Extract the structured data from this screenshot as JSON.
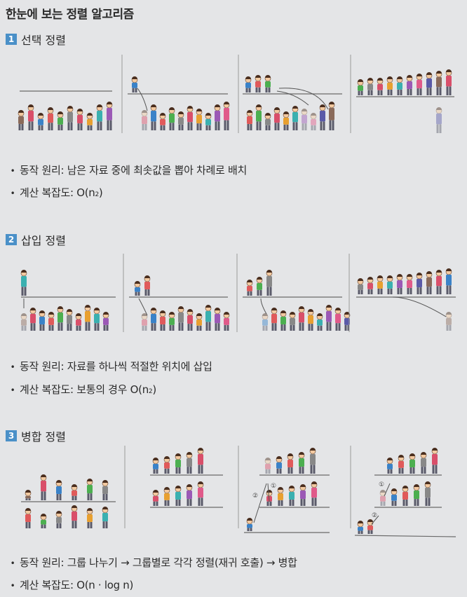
{
  "title": "한눈에 보는 정렬 알고리즘",
  "sections": [
    {
      "number": "1",
      "name": "선택 정렬",
      "principle_label": "동작 원리:",
      "principle": "남은 자료 중에 최솟값을 뽑아 차례로 배치",
      "complexity_label": "계산 복잡도:",
      "complexity_prefix": "O(n",
      "complexity_sup": "2",
      "complexity_suffix": ")"
    },
    {
      "number": "2",
      "name": "삽입 정렬",
      "principle_label": "동작 원리:",
      "principle": "자료를 하나씩 적절한 위치에 삽입",
      "complexity_label": "계산 복잡도:",
      "complexity_prefix": "보통의 경우 O(n",
      "complexity_sup": "2",
      "complexity_suffix": ")"
    },
    {
      "number": "3",
      "name": "병합 정렬",
      "principle_label": "동작 원리:",
      "principle": "그룹 나누기 → 그룹별로 각각 정렬(재귀 호출) → 병합",
      "complexity_label": "계산 복잡도:",
      "complexity_prefix": "O(n · log n)",
      "complexity_sup": "",
      "complexity_suffix": ""
    }
  ],
  "step_markers": [
    "①",
    "②"
  ],
  "colors": {
    "badge": "#4a90c8",
    "palette": [
      "#8a6a5a",
      "#d94f6a",
      "#3a82c8",
      "#e05a5a",
      "#4caf50",
      "#888888",
      "#d94f6a",
      "#e8a030",
      "#3ab0b0",
      "#9b59b6",
      "#e05a8a",
      "#5a5aa8"
    ]
  }
}
